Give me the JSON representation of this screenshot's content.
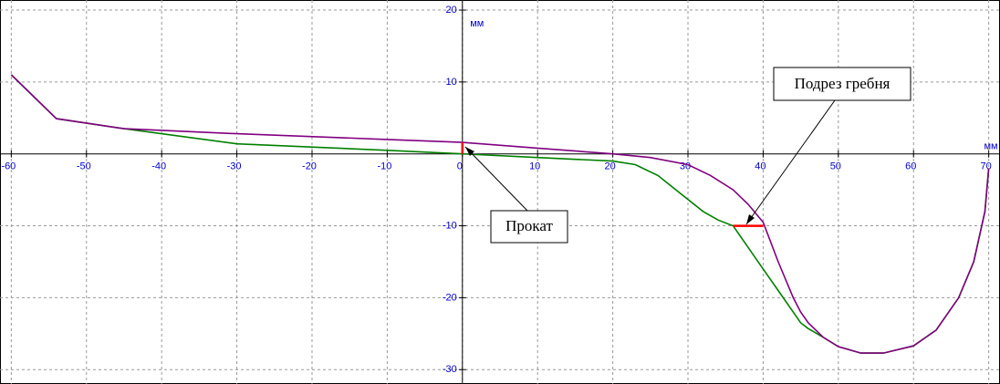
{
  "chart_data": {
    "type": "line",
    "xlabel": "мм",
    "ylabel": "мм",
    "xlim": [
      -61.5,
      71.5
    ],
    "ylim": [
      -32,
      21.4
    ],
    "xticks": [
      -60,
      -50,
      -40,
      -30,
      -20,
      -10,
      0,
      10,
      20,
      30,
      40,
      50,
      60,
      70
    ],
    "yticks": [
      -30,
      -20,
      -10,
      10,
      20
    ],
    "grid": true,
    "series": [
      {
        "color": "#008000",
        "x": [
          -60,
          -54,
          -45,
          -30,
          -10,
          0,
          10,
          20,
          23,
          26,
          29,
          32,
          34,
          36,
          38,
          40,
          42,
          44,
          45,
          46,
          48,
          50,
          53,
          56,
          60,
          63,
          66,
          68,
          69.5,
          70
        ],
        "values": [
          11,
          4.9,
          3.5,
          1.4,
          0.5,
          0,
          -0.5,
          -1,
          -1.5,
          -3,
          -5.5,
          -8,
          -9.2,
          -10,
          -13,
          -16,
          -19,
          -22,
          -23.5,
          -24.3,
          -25.5,
          -26.8,
          -27.7,
          -27.7,
          -26.7,
          -24.5,
          -20,
          -15,
          -8,
          -2
        ]
      },
      {
        "color": "#800080",
        "x": [
          -60,
          -54,
          -45,
          -30,
          -10,
          0,
          10,
          20,
          25,
          30,
          33,
          36,
          38,
          40,
          42,
          44,
          45,
          46,
          48,
          50,
          53,
          56,
          60,
          63,
          66,
          68,
          69.5,
          70
        ],
        "values": [
          11,
          4.9,
          3.5,
          2.8,
          2,
          1.6,
          0.8,
          0,
          -0.5,
          -1.5,
          -3,
          -5,
          -7,
          -9.5,
          -15,
          -20,
          -22,
          -23.5,
          -25.5,
          -26.8,
          -27.7,
          -27.7,
          -26.7,
          -24.5,
          -20,
          -15,
          -8,
          -2
        ]
      }
    ],
    "segments": [
      {
        "color": "#ff0000",
        "x": [
          36,
          40
        ],
        "values": [
          -10,
          -10
        ]
      },
      {
        "color": "#ff0000",
        "x": [
          0,
          0
        ],
        "values": [
          0,
          1.6
        ]
      }
    ],
    "annotations": [
      {
        "text": "Прокат"
      },
      {
        "text": "Подрез гребня"
      }
    ]
  }
}
